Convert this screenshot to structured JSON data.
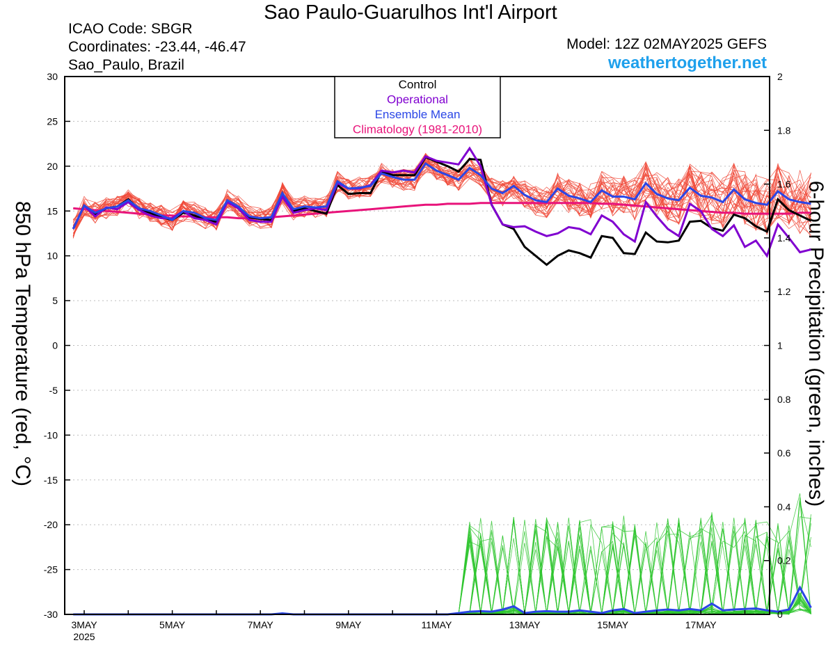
{
  "header": {
    "title": "Sao Paulo-Guarulhos Int'l Airport",
    "icao": "ICAO Code: SBGR",
    "coordinates": "Coordinates: -23.44, -46.47",
    "location": "Sao_Paulo, Brazil",
    "model": "Model: 12Z 02MAY2025 GEFS",
    "brand": "weathertogether.net",
    "brand_color": "#1ea0ec"
  },
  "chart_data": {
    "type": "line",
    "y_left": {
      "label": "850 hPa Temperature (red, °C)",
      "range": [
        -30,
        30
      ],
      "ticks": [
        "30",
        "25",
        "20",
        "15",
        "10",
        "5",
        "0",
        "-5",
        "-10",
        "-15",
        "-20",
        "-25",
        "-30"
      ]
    },
    "y_right": {
      "label": "6-hour Precipitation (green, inches)",
      "range": [
        0,
        2
      ],
      "ticks": [
        "2",
        "1.8",
        "1.6",
        "1.4",
        "1.2",
        "1",
        "0.8",
        "0.6",
        "0.4",
        "0.2",
        "0"
      ]
    },
    "x": {
      "start": "2025-05-02T18Z",
      "end": "2025-05-18T18Z",
      "ticks": [
        {
          "label": "3MAY",
          "sub": "2025",
          "day": 3
        },
        {
          "label": "5MAY",
          "day": 5
        },
        {
          "label": "7MAY",
          "day": 7
        },
        {
          "label": "9MAY",
          "day": 9
        },
        {
          "label": "11MAY",
          "day": 11
        },
        {
          "label": "13MAY",
          "day": 13
        },
        {
          "label": "15MAY",
          "day": 15
        },
        {
          "label": "17MAY",
          "day": 17
        }
      ]
    },
    "grid": true,
    "legend": {
      "position": "top-center",
      "entries": [
        {
          "name": "Control",
          "color": "#000000"
        },
        {
          "name": "Operational",
          "color": "#8000d0"
        },
        {
          "name": "Ensemble Mean",
          "color": "#2a46e6"
        },
        {
          "name": "Climatology (1981-2010)",
          "color": "#e8137a"
        }
      ]
    },
    "colors": {
      "members_temp": "#f04a3a",
      "members_precip": "#2ec62e",
      "control": "#000000",
      "operational": "#8000d0",
      "mean": "#2a46e6",
      "climatology": "#e8137a"
    },
    "series": {
      "control_temp": [
        13,
        15.6,
        14.6,
        15.3,
        15.5,
        16.3,
        15.2,
        14.8,
        14.3,
        14,
        14.8,
        14.5,
        14,
        13.8,
        16.1,
        15.4,
        14.3,
        14.1,
        14,
        17,
        15,
        15.3,
        15,
        14.7,
        17.9,
        16.9,
        17,
        17,
        19.4,
        19,
        19,
        19,
        21,
        20.5,
        20,
        19.4,
        20.8,
        20.7,
        15.7,
        13.5,
        13,
        11,
        10,
        9,
        10,
        10.6,
        10.3,
        9.8,
        12.2,
        12,
        10.3,
        10.2,
        12.6,
        11.6,
        11.5,
        11.7,
        13.8,
        13.9,
        13.1,
        12.8,
        14.6,
        14.2,
        13.3,
        12.7,
        16.3,
        15.1,
        14.5,
        13.9
      ],
      "operational_temp": [
        13,
        15.6,
        14.4,
        15.4,
        15.2,
        16,
        15.1,
        14.5,
        14.2,
        14.2,
        15,
        14.2,
        14,
        13.5,
        16,
        15.3,
        14,
        13.8,
        13.8,
        16.6,
        14.8,
        15.1,
        15.3,
        15.1,
        18.1,
        17.5,
        17.5,
        17.9,
        19.5,
        19.3,
        19.5,
        19.3,
        21.1,
        20.6,
        20.4,
        20.2,
        22,
        20,
        15.7,
        13.5,
        13.2,
        13.3,
        12.7,
        12.2,
        12.5,
        13.2,
        13,
        12.4,
        14.5,
        13.8,
        12.4,
        11.6,
        16,
        14.4,
        13,
        12.2,
        15.8,
        15,
        13,
        12.2,
        13.4,
        11,
        11.7,
        10,
        13.5,
        12,
        10.4,
        10.7
      ],
      "mean_temp": [
        13,
        15.6,
        14.8,
        15.3,
        15.5,
        16.2,
        15.3,
        15,
        14.5,
        14,
        15,
        14.8,
        14.2,
        14,
        16.2,
        15.5,
        14.4,
        14.2,
        14.3,
        17,
        15.2,
        15.5,
        15.4,
        15.5,
        18.3,
        17.5,
        17.6,
        17.8,
        19.2,
        18.8,
        18.5,
        18.5,
        20.3,
        19.5,
        19,
        18.5,
        19.8,
        19,
        17.5,
        17,
        17.8,
        16.8,
        16.2,
        16,
        17.5,
        16.7,
        16.4,
        16,
        17.3,
        16.6,
        16.6,
        16.3,
        18.1,
        16.9,
        16.4,
        16.2,
        17.6,
        16.7,
        16.5,
        16,
        17.4,
        16.3,
        15.9,
        15.7,
        17.2,
        16.3,
        16,
        15.8
      ],
      "climatology_temp": [
        15.3,
        15.2,
        15.1,
        15,
        14.9,
        14.8,
        14.7,
        14.6,
        14.5,
        14.5,
        14.4,
        14.4,
        14.3,
        14.3,
        14.3,
        14.2,
        14.2,
        14.2,
        14.3,
        14.4,
        14.5,
        14.6,
        14.7,
        14.8,
        14.9,
        15,
        15.1,
        15.2,
        15.3,
        15.4,
        15.5,
        15.6,
        15.7,
        15.7,
        15.8,
        15.8,
        15.8,
        15.9,
        15.9,
        15.9,
        15.9,
        15.9,
        15.9,
        15.9,
        15.9,
        15.9,
        15.9,
        15.9,
        15.8,
        15.8,
        15.7,
        15.6,
        15.5,
        15.4,
        15.3,
        15.2,
        15.1,
        15,
        14.9,
        14.8,
        14.8,
        14.7,
        14.7,
        14.7,
        14.7,
        14.7,
        14.8,
        14.8
      ],
      "mean_precip": [
        0,
        0,
        0,
        0,
        0,
        0,
        0,
        0,
        0,
        0,
        0,
        0,
        0,
        0,
        0,
        0,
        0,
        0,
        0,
        0.004,
        0,
        0,
        0,
        0,
        0,
        0,
        0,
        0,
        0,
        0,
        0,
        0,
        0,
        0,
        0,
        0.005,
        0.01,
        0.012,
        0.01,
        0.018,
        0.03,
        0.005,
        0.01,
        0.012,
        0.01,
        0.01,
        0.015,
        0.01,
        0.005,
        0.015,
        0.02,
        0.005,
        0.01,
        0.015,
        0.018,
        0.015,
        0.02,
        0.015,
        0.04,
        0.015,
        0.018,
        0.02,
        0.022,
        0.015,
        0.01,
        0.018,
        0.1,
        0.025
      ]
    }
  }
}
